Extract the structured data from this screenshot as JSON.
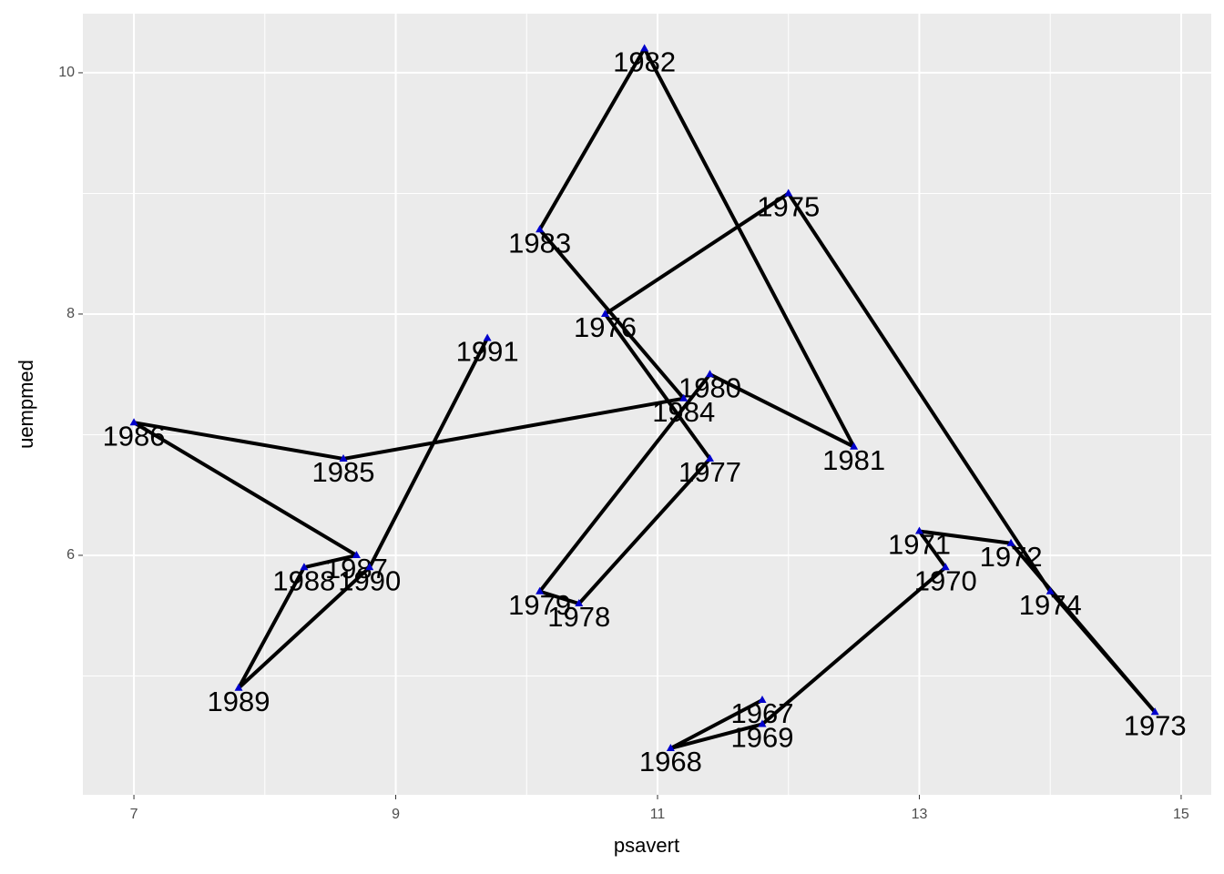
{
  "chart_data": {
    "type": "path",
    "x_label": "psavert",
    "y_label": "uempmed",
    "x": [
      11.8,
      11.1,
      11.8,
      13.2,
      13.0,
      13.7,
      14.8,
      14.0,
      12.0,
      10.6,
      11.4,
      10.4,
      10.1,
      11.4,
      12.5,
      10.9,
      10.1,
      11.2,
      8.6,
      7.0,
      8.7,
      8.3,
      7.8,
      8.8,
      9.7
    ],
    "values": [
      4.8,
      4.4,
      4.6,
      5.9,
      6.2,
      6.1,
      4.7,
      5.7,
      9.0,
      8.0,
      6.8,
      5.6,
      5.7,
      7.5,
      6.9,
      10.2,
      8.7,
      7.3,
      6.8,
      7.1,
      6.0,
      5.9,
      4.9,
      5.9,
      7.8
    ],
    "point_labels": [
      "1967",
      "1968",
      "1969",
      "1970",
      "1971",
      "1972",
      "1973",
      "1974",
      "1975",
      "1976",
      "1977",
      "1978",
      "1979",
      "1980",
      "1981",
      "1982",
      "1983",
      "1984",
      "1985",
      "1986",
      "1987",
      "1988",
      "1989",
      "1990",
      "1991"
    ],
    "line_color": "#000000",
    "point_color": "#0000cc",
    "xlim": [
      6.61,
      15.23
    ],
    "ylim": [
      4.015,
      10.49
    ],
    "xticks": [
      7,
      9,
      11,
      13,
      15
    ],
    "yticks": [
      6,
      8,
      10
    ],
    "grid": true
  }
}
